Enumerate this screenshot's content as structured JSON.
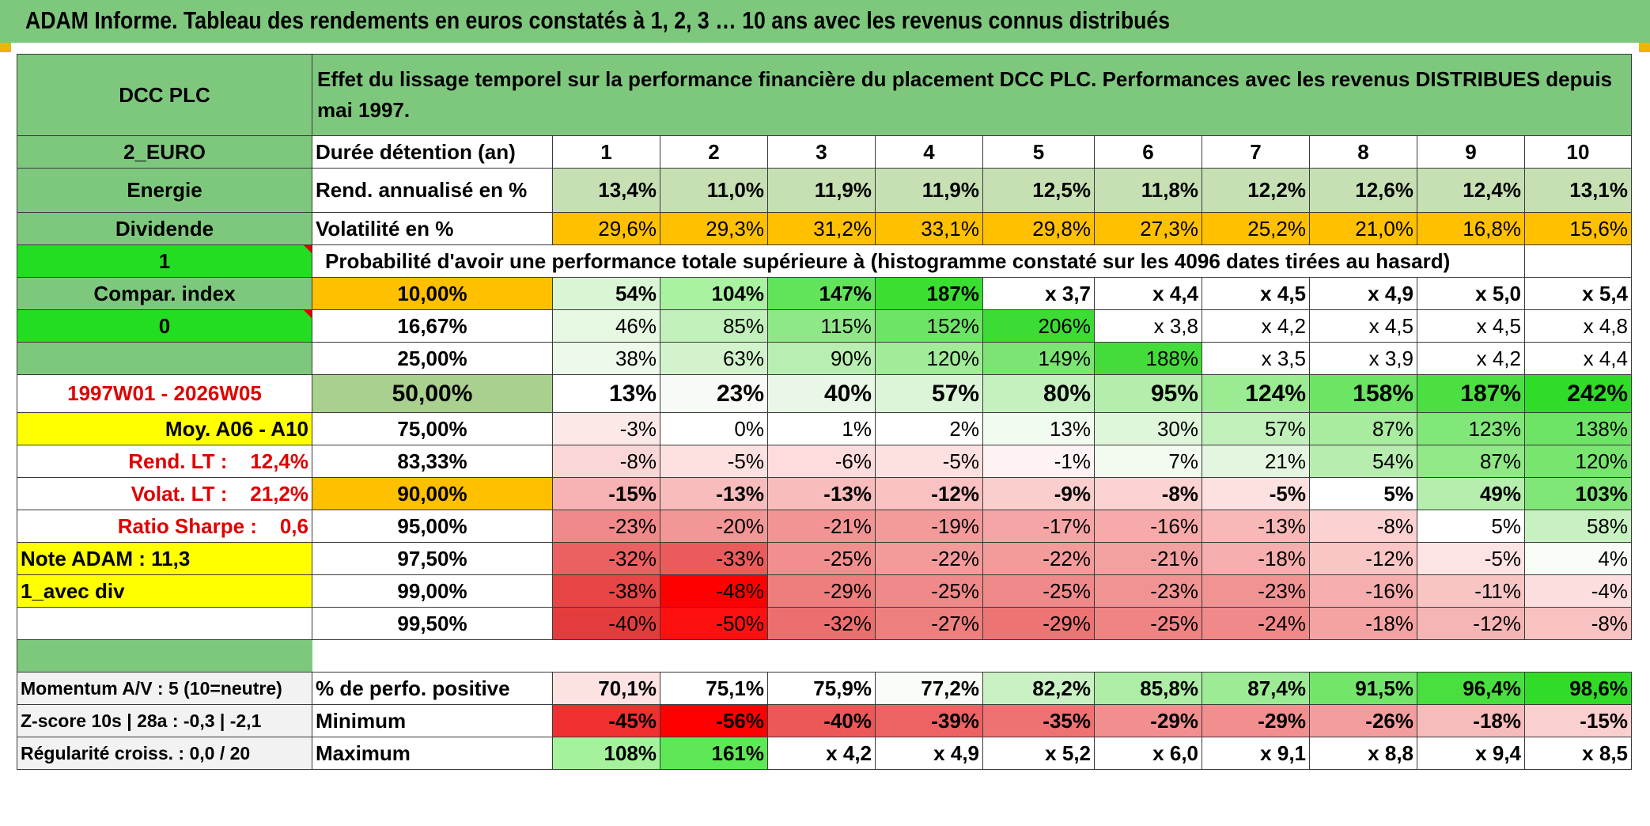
{
  "title": "ADAM Informe. Tableau des rendements en euros constatés à 1, 2, 3 … 10 ans avec les revenus connus distribués",
  "left": {
    "name": "DCC PLC",
    "currency": "2_EURO",
    "sector": "Energie",
    "income": "Dividende",
    "flag1": "1",
    "compar": "Compar. index",
    "flag2": "0",
    "period": "1997W01 - 2026W05",
    "moy": "Moy. A06 - A10",
    "rend_lt": "Rend. LT :    12,4%",
    "volat_lt": "Volat. LT :    21,2%",
    "sharpe": "Ratio Sharpe :    0,6",
    "note": "Note ADAM : 11,3",
    "div": "1_avec div",
    "momentum": "Momentum A/V : 5 (10=neutre)",
    "zscore": "Z-score 10s | 28a : -0,3 | -2,1",
    "regul": "Régularité croiss. : 0,0 / 20"
  },
  "header_text": "Effet du lissage temporel sur la performance financière du placement DCC PLC. Performances avec les revenus DISTRIBUES depuis mai 1997.",
  "durations_label": "Durée détention (an)",
  "durations": [
    "1",
    "2",
    "3",
    "4",
    "5",
    "6",
    "7",
    "8",
    "9",
    "10"
  ],
  "rend_label": "Rend. annualisé en %",
  "rend": [
    "13,4%",
    "11,0%",
    "11,9%",
    "11,9%",
    "12,5%",
    "11,8%",
    "12,2%",
    "12,6%",
    "12,4%",
    "13,1%"
  ],
  "vol_label": "Volatilité en %",
  "vol": [
    "29,6%",
    "29,3%",
    "31,2%",
    "33,1%",
    "29,8%",
    "27,3%",
    "25,2%",
    "21,0%",
    "16,8%",
    "15,6%"
  ],
  "proba_label": "Probabilité d'avoir une performance totale supérieure à (histogramme constaté sur les 4096 dates tirées au hasard)",
  "prob_rows": [
    {
      "p": "10,00%",
      "v": [
        "54%",
        "104%",
        "147%",
        "187%",
        "x 3,7",
        "x 4,4",
        "x 4,5",
        "x 4,9",
        "x 5,0",
        "x 5,4"
      ]
    },
    {
      "p": "16,67%",
      "v": [
        "46%",
        "85%",
        "115%",
        "152%",
        "206%",
        "x 3,8",
        "x 4,2",
        "x 4,5",
        "x 4,5",
        "x 4,8"
      ]
    },
    {
      "p": "25,00%",
      "v": [
        "38%",
        "63%",
        "90%",
        "120%",
        "149%",
        "188%",
        "x 3,5",
        "x 3,9",
        "x 4,2",
        "x 4,4"
      ]
    },
    {
      "p": "50,00%",
      "v": [
        "13%",
        "23%",
        "40%",
        "57%",
        "80%",
        "95%",
        "124%",
        "158%",
        "187%",
        "242%"
      ]
    },
    {
      "p": "75,00%",
      "v": [
        "-3%",
        "0%",
        "1%",
        "2%",
        "13%",
        "30%",
        "57%",
        "87%",
        "123%",
        "138%"
      ]
    },
    {
      "p": "83,33%",
      "v": [
        "-8%",
        "-5%",
        "-6%",
        "-5%",
        "-1%",
        "7%",
        "21%",
        "54%",
        "87%",
        "120%"
      ]
    },
    {
      "p": "90,00%",
      "v": [
        "-15%",
        "-13%",
        "-13%",
        "-12%",
        "-9%",
        "-8%",
        "-5%",
        "5%",
        "49%",
        "103%"
      ]
    },
    {
      "p": "95,00%",
      "v": [
        "-23%",
        "-20%",
        "-21%",
        "-19%",
        "-17%",
        "-16%",
        "-13%",
        "-8%",
        "5%",
        "58%"
      ]
    },
    {
      "p": "97,50%",
      "v": [
        "-32%",
        "-33%",
        "-25%",
        "-22%",
        "-22%",
        "-21%",
        "-18%",
        "-12%",
        "-5%",
        "4%"
      ]
    },
    {
      "p": "99,00%",
      "v": [
        "-38%",
        "-48%",
        "-29%",
        "-25%",
        "-25%",
        "-23%",
        "-23%",
        "-16%",
        "-11%",
        "-4%"
      ]
    },
    {
      "p": "99,50%",
      "v": [
        "-40%",
        "-50%",
        "-32%",
        "-27%",
        "-29%",
        "-25%",
        "-24%",
        "-18%",
        "-12%",
        "-8%"
      ]
    }
  ],
  "pos_label": "% de perfo. positive",
  "pos": [
    "70,1%",
    "75,1%",
    "75,9%",
    "77,2%",
    "82,2%",
    "85,8%",
    "87,4%",
    "91,5%",
    "96,4%",
    "98,6%"
  ],
  "min_label": "Minimum",
  "min": [
    "-45%",
    "-56%",
    "-40%",
    "-39%",
    "-35%",
    "-29%",
    "-29%",
    "-26%",
    "-18%",
    "-15%"
  ],
  "max_label": "Maximum",
  "max": [
    "108%",
    "161%",
    "x 4,2",
    "x 4,9",
    "x 5,2",
    "x 6,0",
    "x 9,1",
    "x 8,8",
    "x 9,4",
    "x 8,5"
  ],
  "colors": {
    "title_bg": "#7ec87e",
    "bright_green": "#22dd22",
    "yellow": "#ffff00",
    "orange": "#ffc000",
    "label_red": "#e00000"
  }
}
